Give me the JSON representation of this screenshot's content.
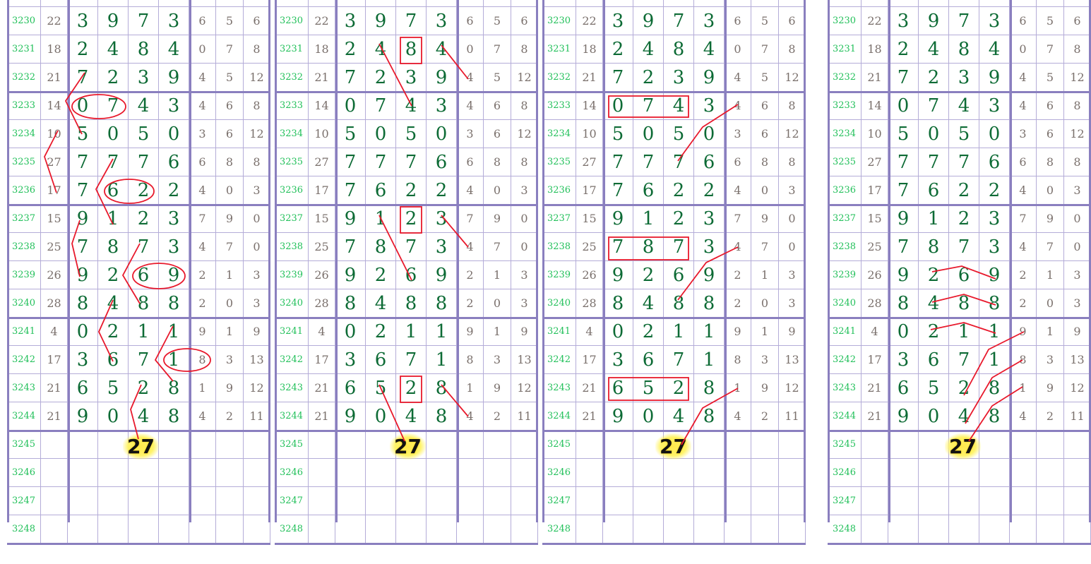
{
  "rows": [
    {
      "period": "3230",
      "sum": "22",
      "digits": [
        "3",
        "9",
        "7",
        "3"
      ],
      "extras": [
        "6",
        "5",
        "6"
      ]
    },
    {
      "period": "3231",
      "sum": "18",
      "digits": [
        "2",
        "4",
        "8",
        "4"
      ],
      "extras": [
        "0",
        "7",
        "8"
      ]
    },
    {
      "period": "3232",
      "sum": "21",
      "digits": [
        "7",
        "2",
        "3",
        "9"
      ],
      "extras": [
        "4",
        "5",
        "12"
      ]
    },
    {
      "period": "3233",
      "sum": "14",
      "digits": [
        "0",
        "7",
        "4",
        "3"
      ],
      "extras": [
        "4",
        "6",
        "8"
      ]
    },
    {
      "period": "3234",
      "sum": "10",
      "digits": [
        "5",
        "0",
        "5",
        "0"
      ],
      "extras": [
        "3",
        "6",
        "12"
      ]
    },
    {
      "period": "3235",
      "sum": "27",
      "digits": [
        "7",
        "7",
        "7",
        "6"
      ],
      "extras": [
        "6",
        "8",
        "8"
      ]
    },
    {
      "period": "3236",
      "sum": "17",
      "digits": [
        "7",
        "6",
        "2",
        "2"
      ],
      "extras": [
        "4",
        "0",
        "3"
      ]
    },
    {
      "period": "3237",
      "sum": "15",
      "digits": [
        "9",
        "1",
        "2",
        "3"
      ],
      "extras": [
        "7",
        "9",
        "0"
      ]
    },
    {
      "period": "3238",
      "sum": "25",
      "digits": [
        "7",
        "8",
        "7",
        "3"
      ],
      "extras": [
        "4",
        "7",
        "0"
      ]
    },
    {
      "period": "3239",
      "sum": "26",
      "digits": [
        "9",
        "2",
        "6",
        "9"
      ],
      "extras": [
        "2",
        "1",
        "3"
      ]
    },
    {
      "period": "3240",
      "sum": "28",
      "digits": [
        "8",
        "4",
        "8",
        "8"
      ],
      "extras": [
        "2",
        "0",
        "3"
      ]
    },
    {
      "period": "3241",
      "sum": "4",
      "digits": [
        "0",
        "2",
        "1",
        "1"
      ],
      "extras": [
        "9",
        "1",
        "9"
      ]
    },
    {
      "period": "3242",
      "sum": "17",
      "digits": [
        "3",
        "6",
        "7",
        "1"
      ],
      "extras": [
        "8",
        "3",
        "13"
      ]
    },
    {
      "period": "3243",
      "sum": "21",
      "digits": [
        "6",
        "5",
        "2",
        "8"
      ],
      "extras": [
        "1",
        "9",
        "12"
      ]
    },
    {
      "period": "3244",
      "sum": "21",
      "digits": [
        "9",
        "0",
        "4",
        "8"
      ],
      "extras": [
        "4",
        "2",
        "11"
      ]
    },
    {
      "period": "3245",
      "sum": "",
      "digits": [
        "",
        "",
        "",
        ""
      ],
      "extras": [
        "",
        "",
        ""
      ]
    },
    {
      "period": "3246",
      "sum": "",
      "digits": [
        "",
        "",
        "",
        ""
      ],
      "extras": [
        "",
        "",
        ""
      ]
    },
    {
      "period": "3247",
      "sum": "",
      "digits": [
        "",
        "",
        "",
        ""
      ],
      "extras": [
        "",
        "",
        ""
      ]
    },
    {
      "period": "3248",
      "sum": "",
      "digits": [
        "",
        "",
        "",
        ""
      ],
      "extras": [
        "",
        "",
        ""
      ]
    }
  ],
  "panels": [
    {
      "prediction": "27"
    },
    {
      "prediction": "27"
    },
    {
      "prediction": "27"
    },
    {
      "prediction": "27"
    }
  ],
  "colors": {
    "period": "#22c05a",
    "digits": "#0d6b35",
    "grid": "#8a7fbf",
    "annotation": "#e8192c",
    "highlight": "#ffe94d"
  }
}
